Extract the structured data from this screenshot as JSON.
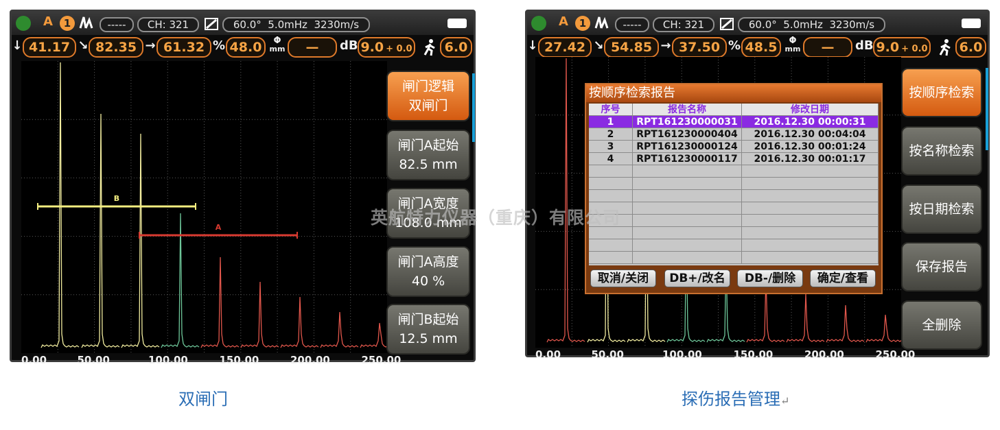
{
  "left_screen": {
    "status": {
      "gate": "A",
      "channel_num": "1",
      "mode": "-----",
      "ch": "CH: 321",
      "probe": "60.0°  5.0mHz  3230m/s"
    },
    "readings": {
      "depth": "41.17",
      "surface": "82.35",
      "horizontal": "61.32",
      "pct_unit": "%",
      "amplitude": "48.0",
      "phi": "Φ",
      "phi_unit": "mm",
      "diameter": "—",
      "db_unit": "dB",
      "gain": "9.0",
      "gain_offset": "+ 0.0",
      "step": "6.0"
    },
    "gate_labels": [
      "B",
      "A"
    ],
    "x_axis": [
      "0.00",
      "50.00",
      "100.00",
      "150.00",
      "200.00",
      "250.00"
    ],
    "menu": [
      {
        "line1": "闸门逻辑",
        "line2": "双闸门"
      },
      {
        "line1": "闸门A起始",
        "line2": "82.5 mm"
      },
      {
        "line1": "闸门A宽度",
        "line2": "108.0 mm"
      },
      {
        "line1": "闸门A高度",
        "line2": "40 %"
      },
      {
        "line1": "闸门B起始",
        "line2": "12.5 mm"
      }
    ]
  },
  "right_screen": {
    "status": {
      "gate": "A",
      "channel_num": "1",
      "mode": "-----",
      "ch": "CH: 321",
      "probe": "60.0°  5.0mHz  3230m/s"
    },
    "readings": {
      "depth": "27.42",
      "surface": "54.85",
      "horizontal": "37.50",
      "pct_unit": "%",
      "amplitude": "48.5",
      "phi": "Φ",
      "phi_unit": "mm",
      "diameter": "—",
      "db_unit": "dB",
      "gain": "9.0",
      "gain_offset": "+ 0.0",
      "step": "6.0"
    },
    "x_axis": [
      "0.00",
      "50.00",
      "100.00",
      "150.00",
      "200.00",
      "250.00"
    ],
    "menu": [
      "按顺序检索",
      "按名称检索",
      "按日期检索",
      "保存报告",
      "全删除"
    ],
    "dialog": {
      "title": "按顺序检索报告",
      "columns": [
        "序号",
        "报告名称",
        "修改日期"
      ],
      "rows": [
        [
          "1",
          "RPT161230000031",
          "2016.12.30  00:00:31"
        ],
        [
          "2",
          "RPT161230000404",
          "2016.12.30  00:04:04"
        ],
        [
          "3",
          "RPT161230000124",
          "2016.12.30  00:01:24"
        ],
        [
          "4",
          "RPT161230000117",
          "2016.12.30  00:01:17"
        ]
      ],
      "buttons": [
        "取消/关闭",
        "DB+/改名",
        "DB-/删除",
        "确定/查看"
      ]
    }
  },
  "watermark": "英航特力仪器（重庆）有限公司",
  "captions": [
    "双闸门",
    "探伤报告管理"
  ],
  "paragraph_mark": "↵"
}
